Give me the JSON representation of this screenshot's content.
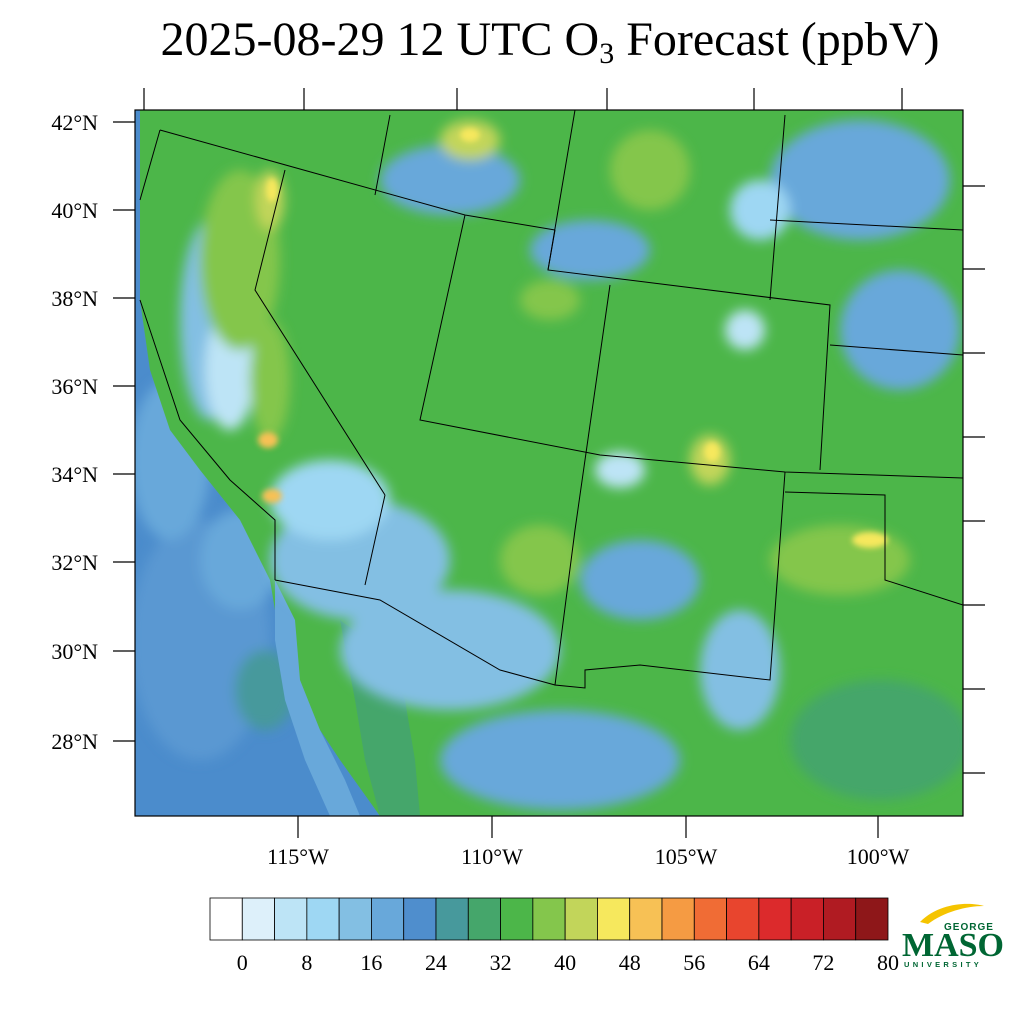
{
  "title_main": "2025-08-29 12 UTC O",
  "title_sub": "3",
  "title_rest": " Forecast (ppbV)",
  "lat_labels": [
    "42°N",
    "40°N",
    "38°N",
    "36°N",
    "34°N",
    "32°N",
    "30°N",
    "28°N"
  ],
  "lon_labels": [
    "115°W",
    "110°W",
    "105°W",
    "100°W"
  ],
  "colorbar": {
    "labels": [
      "0",
      "8",
      "16",
      "24",
      "32",
      "40",
      "48",
      "56",
      "64",
      "72",
      "80"
    ],
    "colors": [
      "#ffffff",
      "#ddf0fa",
      "#bde4f6",
      "#9ed7f3",
      "#83bfe3",
      "#68a8da",
      "#4f8ecd",
      "#47999c",
      "#45a66b",
      "#4cb649",
      "#84c64c",
      "#c2d55a",
      "#f6e85d",
      "#f7c155",
      "#f59b43",
      "#f06c35",
      "#e8452e",
      "#dc2a2c",
      "#c92027",
      "#b01b22",
      "#8e1719"
    ]
  },
  "logo": {
    "line1": "GEORGE",
    "line2": "MASON",
    "line3": "UNIVERSITY"
  },
  "colors": {
    "ocean": "#4b8ccc",
    "land_low": "#7cc4e6",
    "land_mid": "#4cb649",
    "land_high": "#c2d55a",
    "hot": "#f6e85d",
    "brand_green": "#006633",
    "brand_gold": "#f5c400"
  }
}
